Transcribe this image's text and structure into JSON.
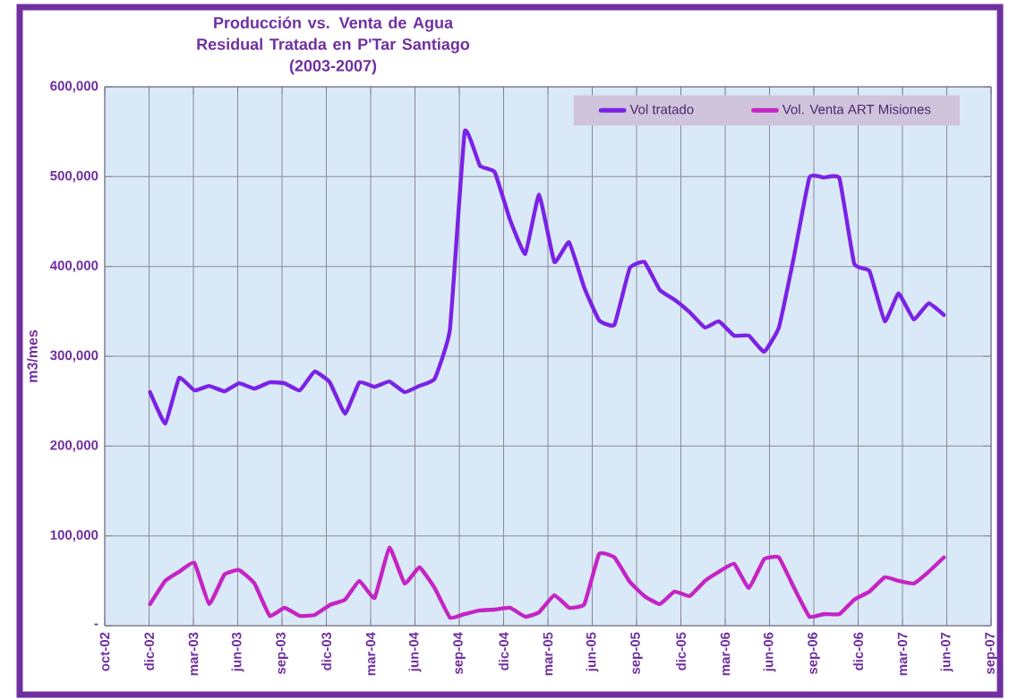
{
  "chart_data": {
    "type": "line",
    "title": "Producción vs. Venta de Agua Residual Tratada en P'Tar Santiago",
    "subtitle": "(2003-2007)",
    "ylabel": "m3/mes",
    "x": [
      "2003-01",
      "2003-02",
      "2003-03",
      "2003-04",
      "2003-05",
      "2003-06",
      "2003-07",
      "2003-08",
      "2003-09",
      "2003-10",
      "2003-11",
      "2003-12",
      "2004-01",
      "2004-02",
      "2004-03",
      "2004-04",
      "2004-05",
      "2004-06",
      "2004-07",
      "2004-08",
      "2004-09",
      "2004-10",
      "2004-11",
      "2004-12",
      "2005-01",
      "2005-02",
      "2005-03",
      "2005-04",
      "2005-05",
      "2005-06",
      "2005-07",
      "2005-08",
      "2005-09",
      "2005-10",
      "2005-11",
      "2005-12",
      "2006-01",
      "2006-02",
      "2006-03",
      "2006-04",
      "2006-05",
      "2006-06",
      "2006-07",
      "2006-08",
      "2006-09",
      "2006-10",
      "2006-11",
      "2006-12",
      "2007-01",
      "2007-02",
      "2007-03",
      "2007-04",
      "2007-05",
      "2007-06"
    ],
    "series": [
      {
        "name": "Vol tratado",
        "color": "#7b22e6",
        "values": [
          260000,
          225000,
          276000,
          262000,
          267000,
          261000,
          270000,
          264000,
          271000,
          270000,
          262000,
          283000,
          271000,
          236000,
          271000,
          266000,
          272000,
          260000,
          267000,
          275000,
          330000,
          550000,
          512000,
          505000,
          452000,
          414000,
          480000,
          405000,
          427000,
          376000,
          340000,
          335000,
          398000,
          405000,
          374000,
          363000,
          349000,
          332000,
          339000,
          323000,
          323000,
          305000,
          332000,
          412000,
          499000,
          499000,
          498000,
          403000,
          395000,
          339000,
          370000,
          341000,
          359000,
          346000
        ]
      },
      {
        "name": "Vol. Venta ART Misiones",
        "color": "#c424c4",
        "values": [
          24000,
          50000,
          60000,
          70000,
          24000,
          57000,
          62000,
          47000,
          11000,
          20000,
          11000,
          12000,
          23000,
          29000,
          50000,
          31000,
          87000,
          47000,
          65000,
          42000,
          9000,
          13000,
          17000,
          18000,
          20000,
          10000,
          15000,
          34000,
          20000,
          24000,
          80000,
          76000,
          49000,
          33000,
          24000,
          38000,
          33000,
          50000,
          60000,
          69000,
          42000,
          74000,
          76000,
          42000,
          10000,
          13000,
          13000,
          29000,
          38000,
          54000,
          50000,
          47000,
          60000,
          76000
        ]
      }
    ],
    "xlim": [
      "2002-10-01",
      "2007-09-05"
    ],
    "xticks": [
      {
        "value": "2002-10-01",
        "label": "oct-02"
      },
      {
        "value": "2002-12-30",
        "label": "dic-02"
      },
      {
        "value": "2003-03-30",
        "label": "mar-03"
      },
      {
        "value": "2003-06-28",
        "label": "jun-03"
      },
      {
        "value": "2003-09-26",
        "label": "sep-03"
      },
      {
        "value": "2003-12-25",
        "label": "dic-03"
      },
      {
        "value": "2004-03-24",
        "label": "mar-04"
      },
      {
        "value": "2004-06-22",
        "label": "jun-04"
      },
      {
        "value": "2004-09-20",
        "label": "sep-04"
      },
      {
        "value": "2004-12-19",
        "label": "dic-04"
      },
      {
        "value": "2005-03-19",
        "label": "mar-05"
      },
      {
        "value": "2005-06-17",
        "label": "jun-05"
      },
      {
        "value": "2005-09-15",
        "label": "sep-05"
      },
      {
        "value": "2005-12-14",
        "label": "dic-05"
      },
      {
        "value": "2006-03-14",
        "label": "mar-06"
      },
      {
        "value": "2006-06-12",
        "label": "jun-06"
      },
      {
        "value": "2006-09-10",
        "label": "sep-06"
      },
      {
        "value": "2006-12-09",
        "label": "dic-06"
      },
      {
        "value": "2007-03-09",
        "label": "mar-07"
      },
      {
        "value": "2007-06-07",
        "label": "jun-07"
      },
      {
        "value": "2007-09-05",
        "label": "sep-07"
      }
    ],
    "ylim": [
      0,
      600000
    ],
    "yticks": [
      {
        "value": 0,
        "label": "-"
      },
      {
        "value": 100000,
        "label": "100,000"
      },
      {
        "value": 200000,
        "label": "200,000"
      },
      {
        "value": 300000,
        "label": "300,000"
      },
      {
        "value": 400000,
        "label": "400,000"
      },
      {
        "value": 500000,
        "label": "500,000"
      },
      {
        "value": 600000,
        "label": "600,000"
      }
    ],
    "grid": true,
    "legend": "top right",
    "marker": "none",
    "line_style": "solid"
  }
}
